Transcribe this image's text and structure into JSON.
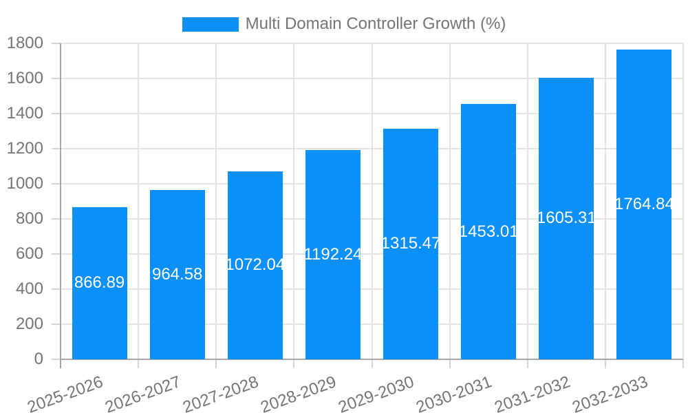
{
  "legend": {
    "label": "Multi Domain Controller Growth (%)",
    "swatch_color": "#0a90f8"
  },
  "chart_data": {
    "type": "bar",
    "title": "Multi Domain Controller Growth (%)",
    "categories": [
      "2025-2026",
      "2026-2027",
      "2027-2028",
      "2028-2029",
      "2029-2030",
      "2030-2031",
      "2031-2032",
      "2032-2033"
    ],
    "values": [
      866.89,
      964.58,
      1072.04,
      1192.24,
      1315.47,
      1453.01,
      1605.31,
      1764.84
    ],
    "value_labels": [
      "866.89",
      "964.58",
      "1072.04",
      "1192.24",
      "1315.47",
      "1453.01",
      "1605.31",
      "1764.84"
    ],
    "xlabel": "",
    "ylabel": "",
    "ylim": [
      0,
      1800
    ],
    "ytick_step": 200,
    "yticks": [
      0,
      200,
      400,
      600,
      800,
      1000,
      1200,
      1400,
      1600,
      1800
    ],
    "ytick_labels": [
      "0",
      "200",
      "400",
      "600",
      "800",
      "1000",
      "1200",
      "1400",
      "1600",
      "1800"
    ],
    "grid": true,
    "legend_position": "top-center",
    "bar_color": "#0a90f8",
    "bar_label_color": "#ffffff",
    "axis_text_color": "#757575",
    "gridline_color": "#e4e4e4",
    "axis_line_color": "#a6a6a6"
  }
}
